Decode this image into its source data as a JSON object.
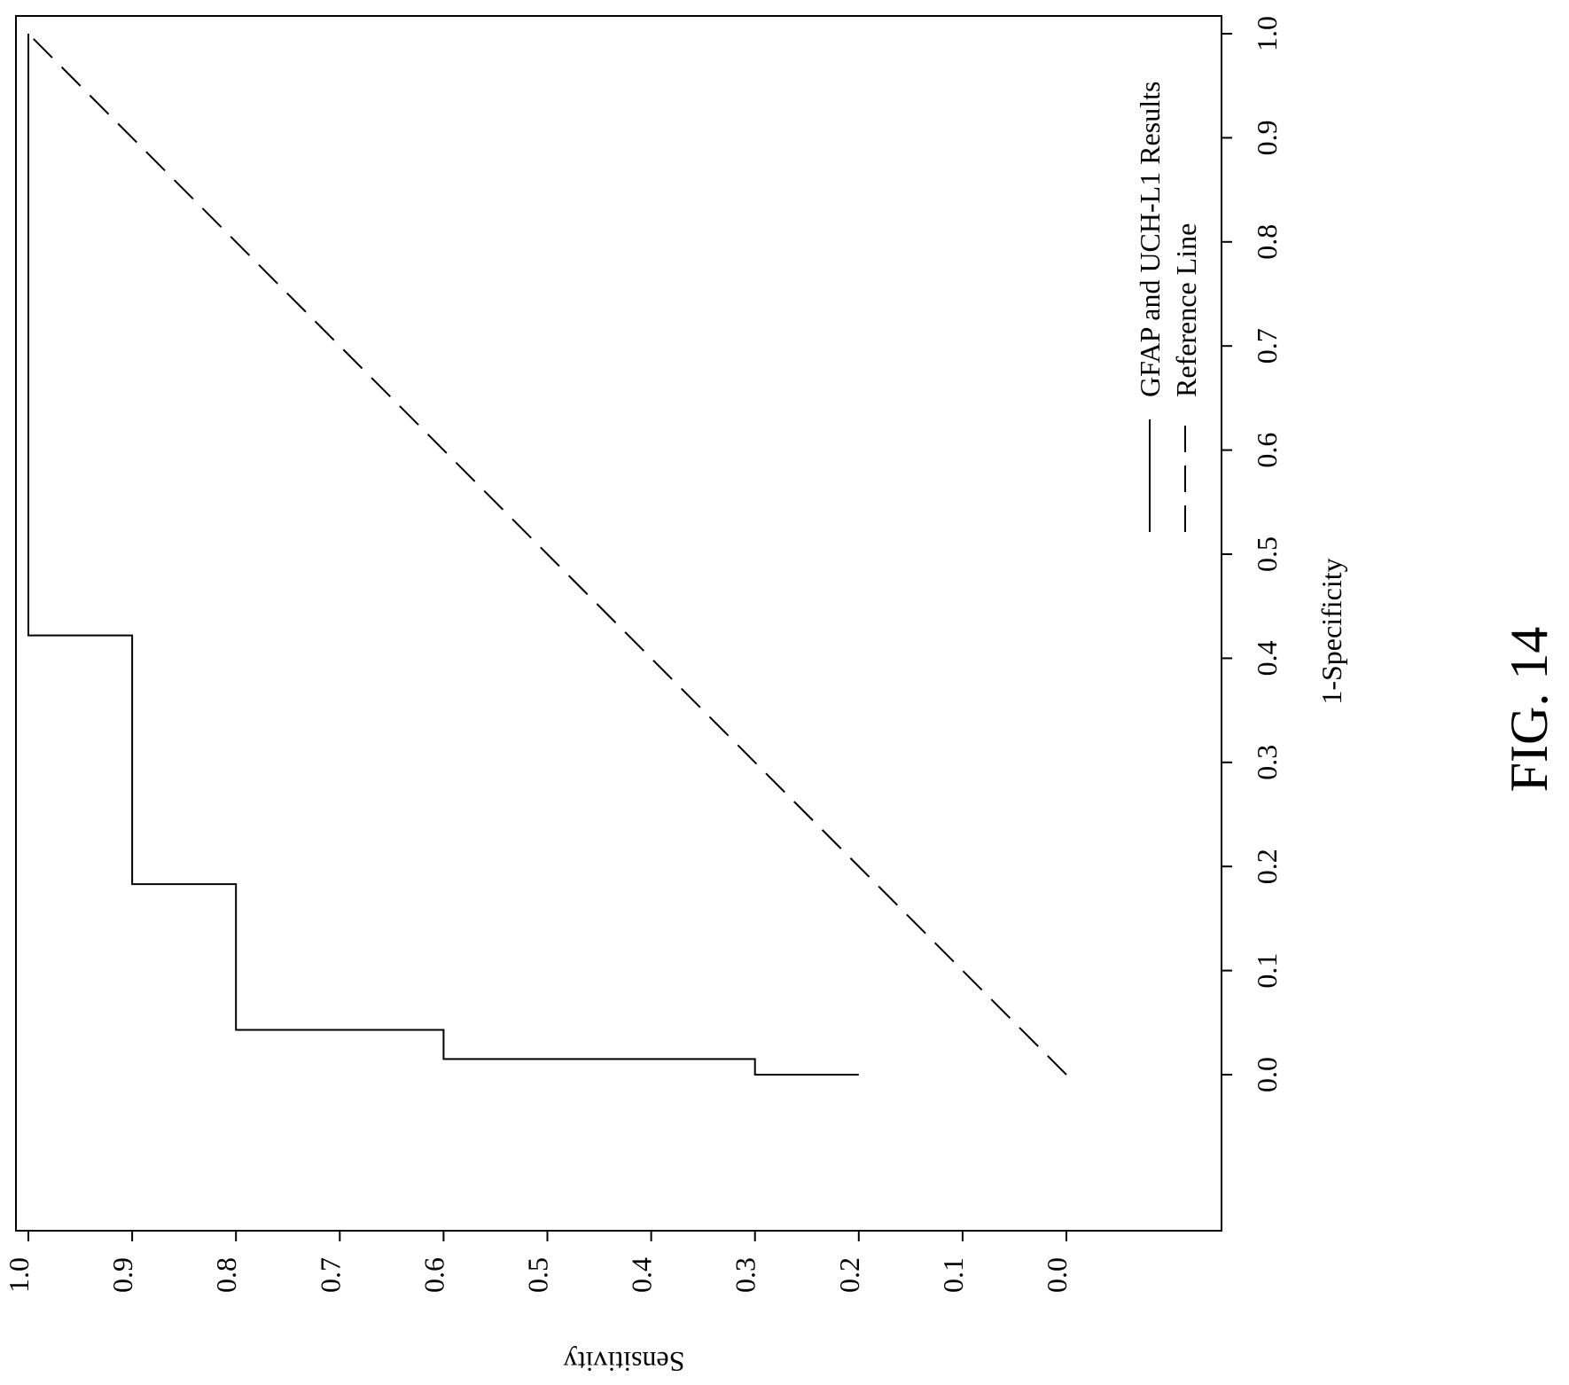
{
  "figure_label": "FIG. 14",
  "chart_data": {
    "type": "line",
    "title": "",
    "xlabel": "1-Specificity",
    "ylabel": "Sensitivity",
    "xlim": [
      0.0,
      1.0
    ],
    "ylim": [
      0.0,
      1.0
    ],
    "x_ticks": [
      "0.0",
      "0.1",
      "0.2",
      "0.3",
      "0.4",
      "0.5",
      "0.6",
      "0.7",
      "0.8",
      "0.9",
      "1.0"
    ],
    "y_ticks": [
      "0.0",
      "0.1",
      "0.2",
      "0.3",
      "0.4",
      "0.5",
      "0.6",
      "0.7",
      "0.8",
      "0.9",
      "1.0"
    ],
    "grid": false,
    "legend_position": "top-right",
    "orientation": "rotated 90 degrees clockwise on the page",
    "series": [
      {
        "name": "GFAP and UCH-L1 Results",
        "style": "solid",
        "color": "#000000",
        "x": [
          0.0,
          0.0,
          0.015,
          0.015,
          0.043,
          0.043,
          0.183,
          0.183,
          0.422,
          0.422,
          1.0
        ],
        "y": [
          0.2,
          0.3,
          0.3,
          0.6,
          0.6,
          0.8,
          0.8,
          0.9,
          0.9,
          1.0,
          1.0
        ]
      },
      {
        "name": "Reference Line",
        "style": "dashed",
        "color": "#000000",
        "x": [
          0.0,
          1.0
        ],
        "y": [
          0.0,
          1.0
        ]
      }
    ]
  }
}
